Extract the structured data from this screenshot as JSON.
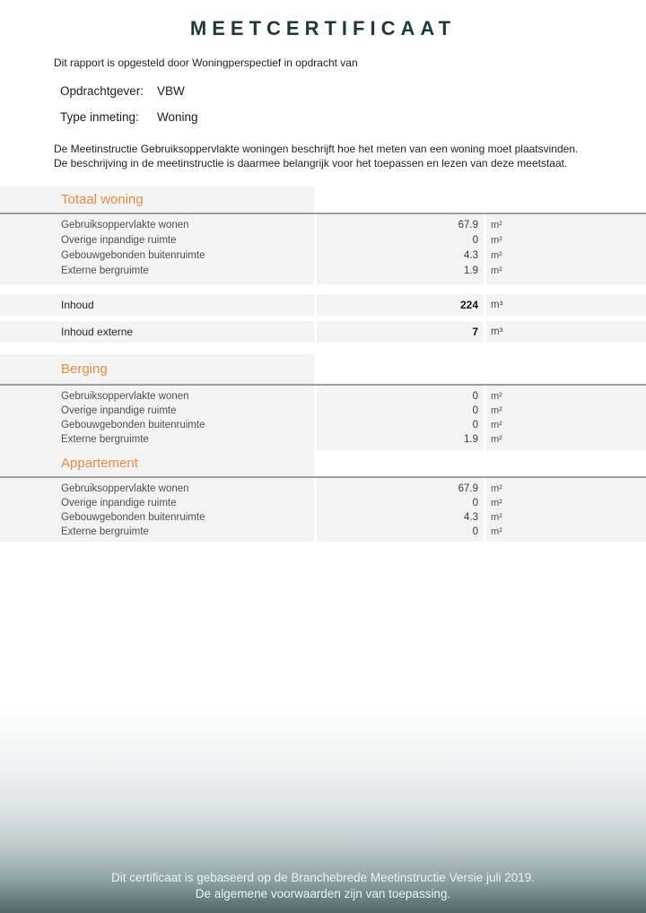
{
  "title": "MEETCERTIFICAAT",
  "intro": "Dit rapport is opgesteld door Woningperspectief in opdracht van",
  "client": {
    "label": "Opdrachtgever:",
    "value": "VBW"
  },
  "measurement_type": {
    "label": "Type inmeting:",
    "value": "Woning"
  },
  "description": {
    "line1": "De Meetinstructie Gebruiksoppervlakte woningen beschrijft hoe het meten van een woning moet plaatsvinden.",
    "line2": "De beschrijving in de meetinstructie is daarmee belangrijk voor het toepassen en lezen van deze meetstaat."
  },
  "table": {
    "sections": [
      {
        "title": "Totaal woning",
        "rows": [
          {
            "label": "Gebruiksoppervlakte wonen",
            "value": "67.9",
            "unit": "m²"
          },
          {
            "label": "Overige inpandige ruimte",
            "value": "0",
            "unit": "m²"
          },
          {
            "label": "Gebouwgebonden buitenruimte",
            "value": "4.3",
            "unit": "m²"
          },
          {
            "label": "Externe bergruimte",
            "value": "1.9",
            "unit": "m²"
          }
        ],
        "totals": [
          {
            "label": "Inhoud",
            "value": "224",
            "unit": "m³"
          },
          {
            "label": "Inhoud externe",
            "value": "7",
            "unit": "m³"
          }
        ]
      },
      {
        "title": "Berging",
        "rows": [
          {
            "label": "Gebruiksoppervlakte wonen",
            "value": "0",
            "unit": "m²"
          },
          {
            "label": "Overige inpandige ruimte",
            "value": "0",
            "unit": "m²"
          },
          {
            "label": "Gebouwgebonden buitenruimte",
            "value": "0",
            "unit": "m²"
          },
          {
            "label": "Externe bergruimte",
            "value": "1.9",
            "unit": "m²"
          }
        ]
      },
      {
        "title": "Appartement",
        "rows": [
          {
            "label": "Gebruiksoppervlakte wonen",
            "value": "67.9",
            "unit": "m²"
          },
          {
            "label": "Overige inpandige ruimte",
            "value": "0",
            "unit": "m²"
          },
          {
            "label": "Gebouwgebonden buitenruimte",
            "value": "4.3",
            "unit": "m²"
          },
          {
            "label": "Externe bergruimte",
            "value": "0",
            "unit": "m²"
          }
        ]
      }
    ]
  },
  "footer": {
    "line1": "Dit certificaat is gebaseerd op de Branchebrede Meetinstructie Versie juli 2019.",
    "line2": "De algemene voorwaarden zijn van toepassing."
  },
  "colors": {
    "accent_orange": "#e78c42",
    "title_dark": "#1d393c",
    "row_background": "#f3f3f3",
    "footer_teal": "#4f6a68"
  }
}
